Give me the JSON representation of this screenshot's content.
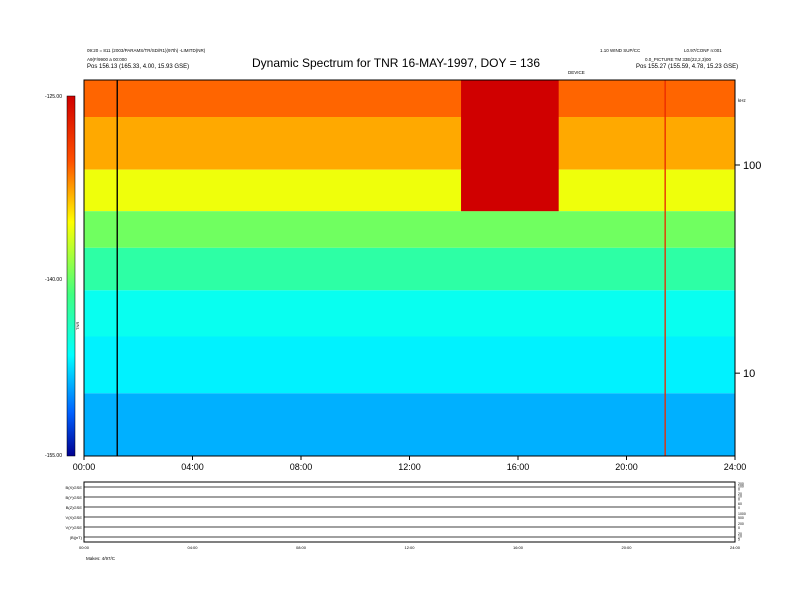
{
  "chart_data": {
    "type": "heatmap",
    "title": "Dynamic Spectrum for TNR 16-MAY-1997, DOY = 136",
    "header": {
      "left_line1": "09:20 = 811 (2003/PARAMS/TR/SD/R1)(97th) -LIMITD(NR)",
      "left_line2": "A9(F/9900 a 00:000",
      "left_line3": "Pos   156.13 (165.33, 4.00, 15.93 GSE)",
      "right_line1": "1.10 WIND SUP/CC",
      "right_line2": "L0.97/CONF n:001",
      "right_line3": "0.0_PICTURE TM 33E(22,2,3)00",
      "right_line4": "Pos   155.27 (155.59, 4.78, 15.23 GSE)",
      "mid_tag": "DEVICE",
      "corner_tag": "kHz"
    },
    "x_ticks": [
      "00:00",
      "04:00",
      "08:00",
      "12:00",
      "16:00",
      "20:00",
      "24:00"
    ],
    "x_range_hours": [
      0,
      24
    ],
    "y_axis_right": {
      "scale": "log",
      "unit": "kHz",
      "ticks": [
        "100",
        "10"
      ],
      "range_khz": [
        4,
        256
      ]
    },
    "colorbar": {
      "ticks": [
        "-125.00",
        "-140.00",
        "-155.00"
      ],
      "label": "TNR",
      "range_db": [
        -155,
        -125
      ]
    },
    "bands": [
      {
        "f_from": 170,
        "f_to": 256,
        "level": -131
      },
      {
        "f_from": 95,
        "f_to": 170,
        "level": -133
      },
      {
        "f_from": 60,
        "f_to": 95,
        "level": -136
      },
      {
        "f_from": 40,
        "f_to": 60,
        "level": -140
      },
      {
        "f_from": 25,
        "f_to": 40,
        "level": -143
      },
      {
        "f_from": 15,
        "f_to": 25,
        "level": -146
      },
      {
        "f_from": 8,
        "f_to": 15,
        "level": -147
      },
      {
        "f_from": 4,
        "f_to": 8,
        "level": -149
      }
    ],
    "features": [
      {
        "name": "data gap",
        "t_start": 1.2,
        "t_end": 1.25,
        "level": null
      },
      {
        "name": "type III bursts",
        "t_start": 13.9,
        "t_end": 17.5,
        "f_low": 60,
        "level": -125
      },
      {
        "name": "burst",
        "t_start": 21.4,
        "t_end": 21.45,
        "f_low": 4,
        "level": -128
      }
    ],
    "panels": [
      {
        "label": "B(X)GSE",
        "ticks": [
          "200",
          "100",
          "0"
        ]
      },
      {
        "label": "B(Y)GSE",
        "ticks": [
          "20",
          "10",
          "0"
        ]
      },
      {
        "label": "B(Z)GSE",
        "ticks": [
          "60",
          "0"
        ]
      },
      {
        "label": "V(X)GSE",
        "ticks": [
          "1000",
          "500"
        ]
      },
      {
        "label": "V(Y)GSE",
        "ticks": [
          "200",
          "0"
        ]
      },
      {
        "label": "|B|(nT)",
        "ticks": [
          "20",
          "10",
          "5"
        ]
      }
    ],
    "bottom_x_ticks": [
      "00:00",
      "04:00",
      "08:00",
      "12:00",
      "16:00",
      "20:00",
      "24:00"
    ],
    "footer": "Makes: 4/97/C"
  }
}
